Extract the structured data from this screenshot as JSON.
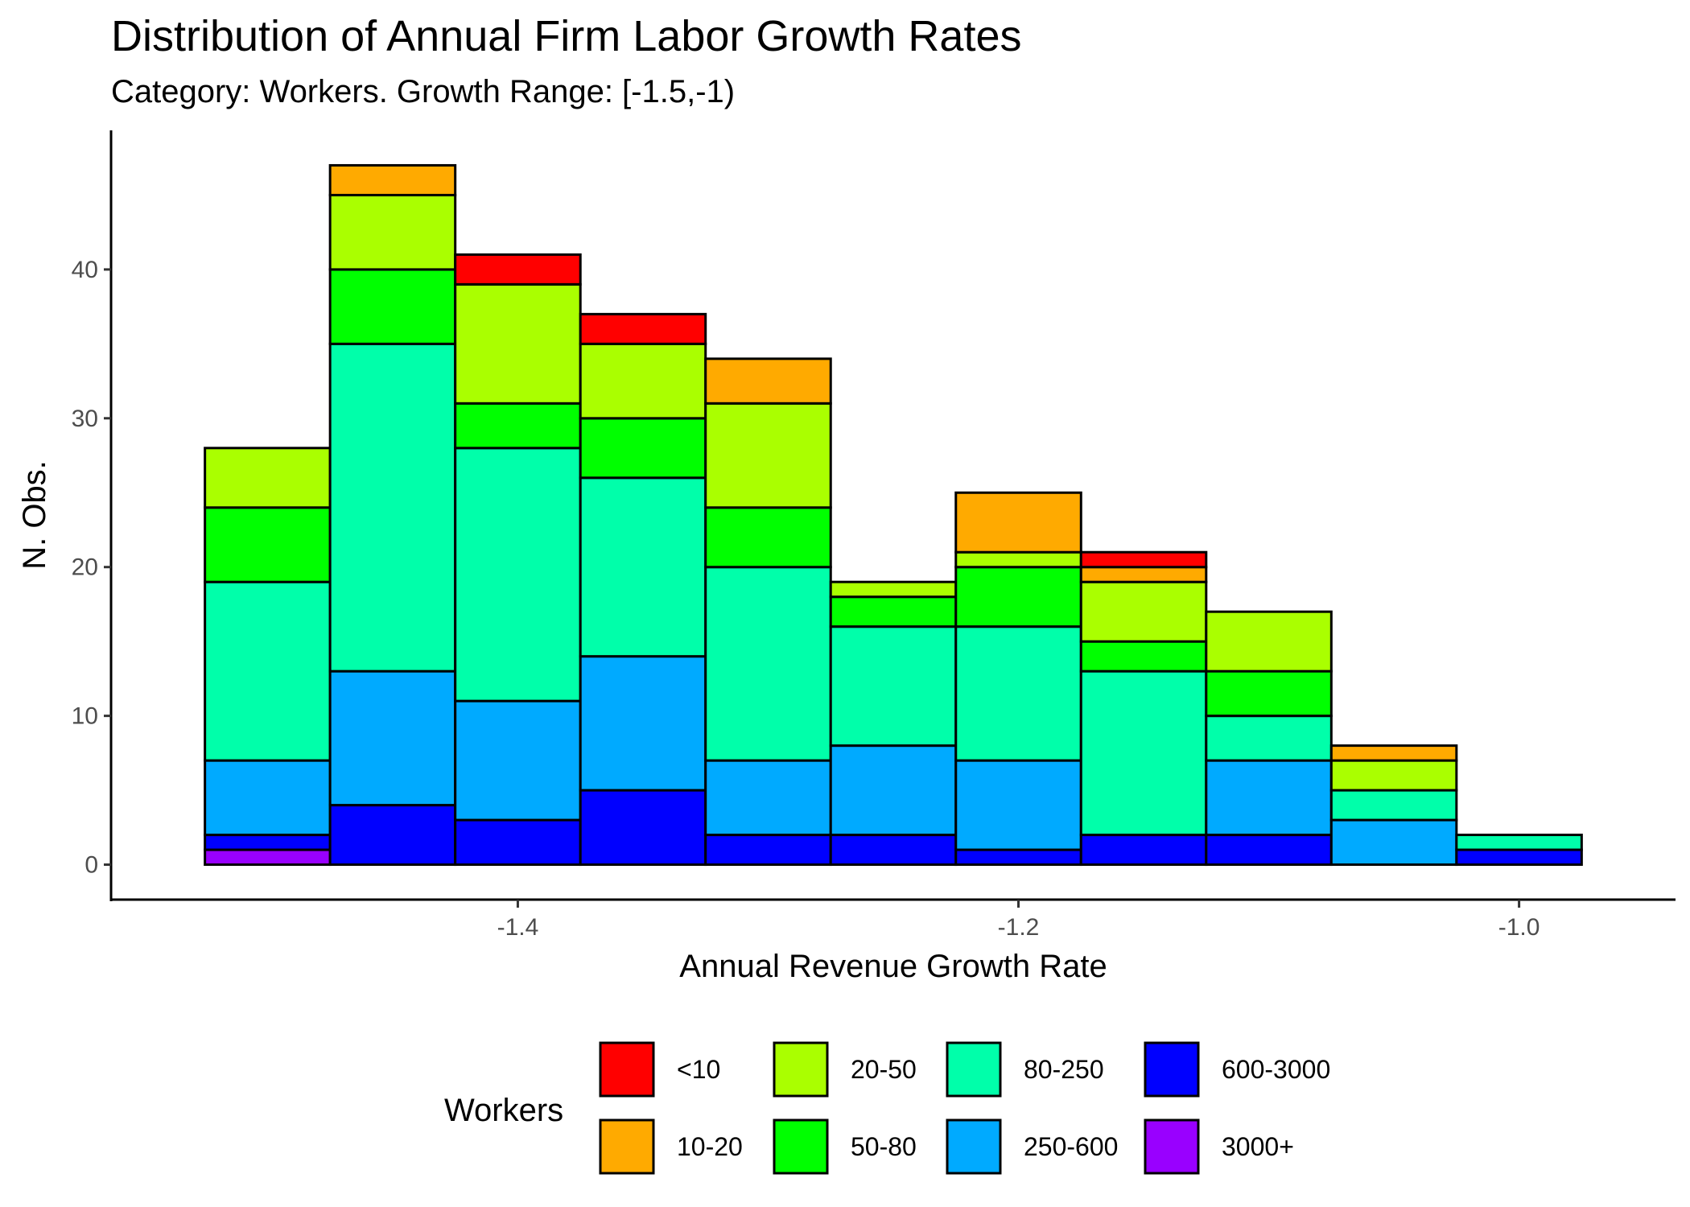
{
  "chart_data": {
    "type": "bar",
    "stacked": true,
    "title": "Distribution of Annual Firm Labor Growth Rates",
    "subtitle": "Category: Workers. Growth Range: [-1.5,-1)",
    "xlabel": "Annual Revenue Growth Rate",
    "ylabel": "N. Obs.",
    "bin_width": 0.05,
    "bin_centers": [
      -1.5,
      -1.45,
      -1.4,
      -1.35,
      -1.3,
      -1.25,
      -1.2,
      -1.15,
      -1.1,
      -1.05,
      -1.0
    ],
    "xlim": [
      -1.5625,
      -0.9375
    ],
    "ylim": [
      -2.35,
      49.35
    ],
    "x_ticks": [
      -1.4,
      -1.2,
      -1.0
    ],
    "x_tick_labels": [
      "-1.4",
      "-1.2",
      "-1.0"
    ],
    "y_ticks": [
      0,
      10,
      20,
      30,
      40
    ],
    "y_tick_labels": [
      "0",
      "10",
      "20",
      "30",
      "40"
    ],
    "grid": false,
    "legend": {
      "title": "Workers",
      "position": "bottom"
    },
    "series": [
      {
        "name": "3000+",
        "color": "#9900ff",
        "values": [
          1,
          0,
          0,
          0,
          0,
          0,
          0,
          0,
          0,
          0,
          0
        ]
      },
      {
        "name": "600-3000",
        "color": "#0000ff",
        "values": [
          1,
          4,
          3,
          5,
          2,
          2,
          1,
          2,
          2,
          0,
          1
        ]
      },
      {
        "name": "250-600",
        "color": "#00aaff",
        "values": [
          5,
          9,
          8,
          9,
          5,
          6,
          6,
          0,
          5,
          3,
          0
        ]
      },
      {
        "name": "80-250",
        "color": "#00ffaa",
        "values": [
          12,
          22,
          17,
          12,
          13,
          8,
          9,
          11,
          3,
          2,
          1
        ]
      },
      {
        "name": "50-80",
        "color": "#00ff00",
        "values": [
          5,
          5,
          3,
          4,
          4,
          2,
          4,
          2,
          3,
          0,
          0
        ]
      },
      {
        "name": "20-50",
        "color": "#aaff00",
        "values": [
          4,
          5,
          8,
          5,
          7,
          1,
          1,
          4,
          4,
          2,
          0
        ]
      },
      {
        "name": "10-20",
        "color": "#ffaa00",
        "values": [
          0,
          2,
          0,
          0,
          3,
          0,
          4,
          1,
          0,
          1,
          0
        ]
      },
      {
        "name": "<10",
        "color": "#ff0000",
        "values": [
          0,
          0,
          2,
          2,
          0,
          0,
          0,
          1,
          0,
          0,
          0
        ]
      }
    ],
    "legend_order": [
      "<10",
      "10-20",
      "20-50",
      "50-80",
      "80-250",
      "250-600",
      "600-3000",
      "3000+"
    ]
  }
}
